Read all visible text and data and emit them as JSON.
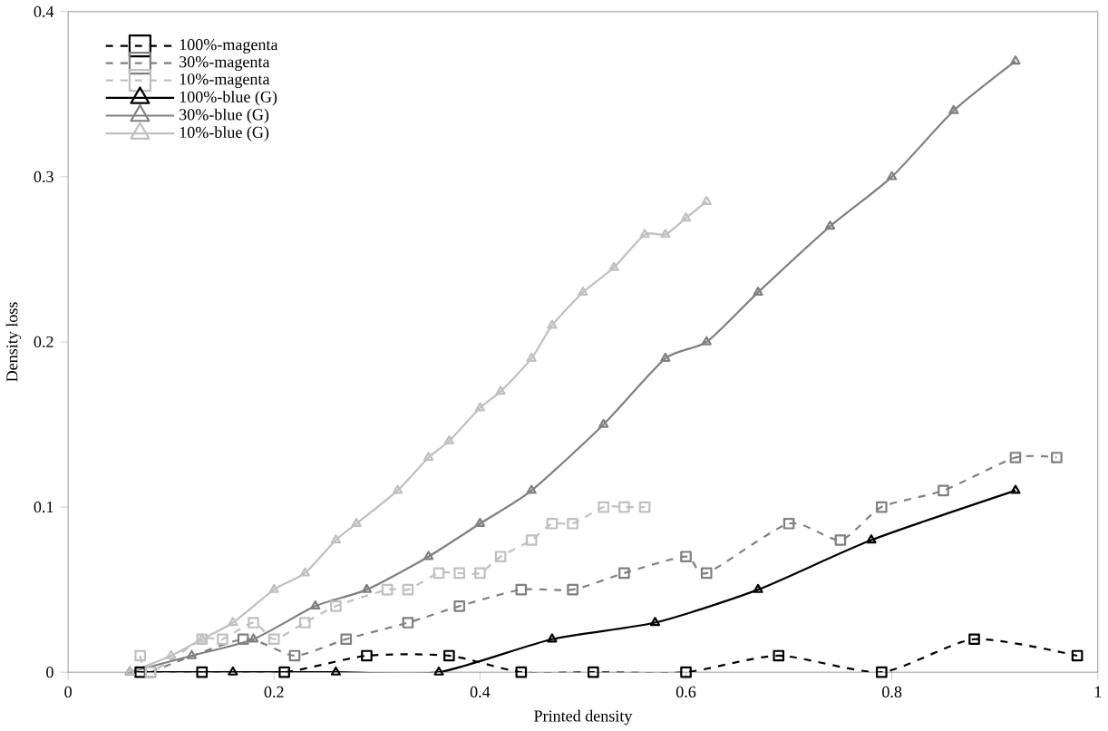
{
  "chart_data": {
    "type": "line",
    "xlabel": "Printed density",
    "ylabel": "Density loss",
    "xlim": [
      0,
      1
    ],
    "ylim": [
      0,
      0.4
    ],
    "xticks": [
      0,
      0.2,
      0.4,
      0.6,
      0.8,
      1
    ],
    "yticks": [
      0,
      0.1,
      0.2,
      0.3,
      0.4
    ],
    "grid": false,
    "legend": "top left",
    "series": [
      {
        "name": "100%-magenta",
        "color": "#000000",
        "line_style": "dashed",
        "marker": "square",
        "x": [
          0.07,
          0.13,
          0.21,
          0.29,
          0.37,
          0.44,
          0.51,
          0.6,
          0.69,
          0.79,
          0.88,
          0.98
        ],
        "values": [
          0,
          0,
          0,
          0.01,
          0.01,
          0,
          0,
          0,
          0.01,
          0,
          0.02,
          0.01
        ]
      },
      {
        "name": "30%-magenta",
        "color": "#808080",
        "line_style": "dashed",
        "marker": "square",
        "x": [
          0.08,
          0.17,
          0.22,
          0.27,
          0.33,
          0.38,
          0.44,
          0.49,
          0.54,
          0.6,
          0.62,
          0.7,
          0.75,
          0.79,
          0.85,
          0.92,
          0.96
        ],
        "values": [
          0,
          0.02,
          0.01,
          0.02,
          0.03,
          0.04,
          0.05,
          0.05,
          0.06,
          0.07,
          0.06,
          0.09,
          0.08,
          0.1,
          0.11,
          0.13,
          0.13
        ]
      },
      {
        "name": "10%-magenta",
        "color": "#c0c0c0",
        "line_style": "dashed",
        "marker": "square",
        "x": [
          0.07,
          0.08,
          0.13,
          0.15,
          0.18,
          0.2,
          0.23,
          0.26,
          0.31,
          0.33,
          0.36,
          0.38,
          0.4,
          0.42,
          0.45,
          0.47,
          0.49,
          0.52,
          0.54,
          0.56
        ],
        "values": [
          0.01,
          0,
          0.02,
          0.02,
          0.03,
          0.02,
          0.03,
          0.04,
          0.05,
          0.05,
          0.06,
          0.06,
          0.06,
          0.07,
          0.08,
          0.09,
          0.09,
          0.1,
          0.1,
          0.1
        ]
      },
      {
        "name": "100%-blue (G)",
        "color": "#000000",
        "line_style": "solid",
        "marker": "triangle",
        "x": [
          0.06,
          0.16,
          0.26,
          0.36,
          0.47,
          0.57,
          0.67,
          0.78,
          0.92
        ],
        "values": [
          0,
          0,
          0,
          0,
          0.02,
          0.03,
          0.05,
          0.08,
          0.11
        ]
      },
      {
        "name": "30%-blue (G)",
        "color": "#808080",
        "line_style": "solid",
        "marker": "triangle",
        "x": [
          0.06,
          0.12,
          0.18,
          0.24,
          0.29,
          0.35,
          0.4,
          0.45,
          0.52,
          0.58,
          0.62,
          0.67,
          0.74,
          0.8,
          0.86,
          0.92
        ],
        "values": [
          0,
          0.01,
          0.02,
          0.04,
          0.05,
          0.07,
          0.09,
          0.11,
          0.15,
          0.19,
          0.2,
          0.23,
          0.27,
          0.3,
          0.34,
          0.37
        ]
      },
      {
        "name": "10%-blue (G)",
        "color": "#c0c0c0",
        "line_style": "solid",
        "marker": "triangle",
        "x": [
          0.06,
          0.1,
          0.13,
          0.16,
          0.2,
          0.23,
          0.26,
          0.28,
          0.32,
          0.35,
          0.37,
          0.4,
          0.42,
          0.45,
          0.47,
          0.5,
          0.53,
          0.56,
          0.58,
          0.6,
          0.62
        ],
        "values": [
          0,
          0.01,
          0.02,
          0.03,
          0.05,
          0.06,
          0.08,
          0.09,
          0.11,
          0.13,
          0.14,
          0.16,
          0.17,
          0.19,
          0.21,
          0.23,
          0.245,
          0.265,
          0.265,
          0.275,
          0.285
        ]
      }
    ]
  }
}
